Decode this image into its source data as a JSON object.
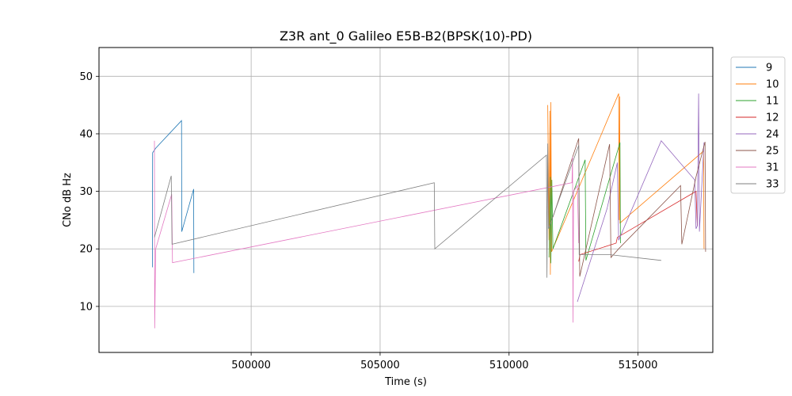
{
  "chart_data": {
    "type": "line",
    "title": "Z3R ant_0 Galileo E5B-B2(BPSK(10)-PD)",
    "xlabel": "Time (s)",
    "ylabel": "CNo dB Hz",
    "xlim": [
      494100,
      517900
    ],
    "ylim": [
      2,
      55
    ],
    "xticks": [
      500000,
      505000,
      510000,
      515000
    ],
    "yticks": [
      10,
      20,
      30,
      40,
      50
    ],
    "grid": true,
    "legend_position": "upper-right-outside",
    "series": [
      {
        "name": "9",
        "color": "#1f77b4",
        "points": [
          [
            496170,
            16.8
          ],
          [
            496180,
            36.7
          ],
          [
            496300,
            37.5
          ],
          [
            497300,
            42.3
          ],
          [
            497310,
            23.0
          ],
          [
            497770,
            30.4
          ],
          [
            497780,
            15.8
          ]
        ]
      },
      {
        "name": "10",
        "color": "#ff7f0e",
        "points": [
          [
            511500,
            45.0
          ],
          [
            511550,
            21.5
          ],
          [
            511580,
            44.0
          ],
          [
            511600,
            15.5
          ],
          [
            511620,
            45.5
          ],
          [
            511650,
            19.5
          ],
          [
            514250,
            47.0
          ],
          [
            514270,
            25.0
          ],
          [
            514290,
            46.5
          ],
          [
            514300,
            24.5
          ],
          [
            517540,
            37.0
          ],
          [
            517560,
            20.0
          ]
        ]
      },
      {
        "name": "11",
        "color": "#2ca02c",
        "points": [
          [
            511550,
            18.5
          ],
          [
            511600,
            32.5
          ],
          [
            511620,
            17.5
          ],
          [
            511660,
            32.0
          ],
          [
            511700,
            20.0
          ],
          [
            512950,
            35.5
          ],
          [
            512980,
            18.0
          ],
          [
            514300,
            38.5
          ],
          [
            514320,
            21.0
          ]
        ]
      },
      {
        "name": "12",
        "color": "#d62728",
        "points": [
          [
            512700,
            17.8
          ],
          [
            512750,
            19.0
          ],
          [
            514150,
            21.0
          ],
          [
            514200,
            22.0
          ],
          [
            517250,
            30.0
          ],
          [
            517300,
            24.0
          ]
        ]
      },
      {
        "name": "24",
        "color": "#9467bd",
        "points": [
          [
            512650,
            10.8
          ],
          [
            513800,
            27.0
          ],
          [
            514200,
            35.0
          ],
          [
            514250,
            21.5
          ],
          [
            515900,
            38.8
          ],
          [
            517200,
            32.0
          ],
          [
            517250,
            23.5
          ],
          [
            517300,
            24.0
          ],
          [
            517350,
            47.0
          ],
          [
            517380,
            23.0
          ],
          [
            517560,
            38.5
          ]
        ]
      },
      {
        "name": "25",
        "color": "#8c564b",
        "points": [
          [
            511700,
            25.5
          ],
          [
            512700,
            39.2
          ],
          [
            512740,
            15.2
          ],
          [
            513900,
            38.2
          ],
          [
            513950,
            18.5
          ],
          [
            514250,
            20.0
          ],
          [
            516650,
            31.0
          ],
          [
            516700,
            20.8
          ],
          [
            517250,
            32.5
          ],
          [
            517600,
            38.6
          ],
          [
            517620,
            19.5
          ]
        ]
      },
      {
        "name": "31",
        "color": "#e377c2",
        "points": [
          [
            496250,
            38.8
          ],
          [
            496260,
            6.2
          ],
          [
            496300,
            20.0
          ],
          [
            496920,
            29.5
          ],
          [
            496950,
            17.6
          ],
          [
            512440,
            31.5
          ],
          [
            512460,
            36.0
          ],
          [
            512480,
            7.2
          ],
          [
            512500,
            30.0
          ],
          [
            512650,
            31.0
          ],
          [
            512700,
            21.0
          ]
        ]
      },
      {
        "name": "33",
        "color": "#7f7f7f",
        "points": [
          [
            496250,
            22.0
          ],
          [
            496900,
            32.7
          ],
          [
            496930,
            20.8
          ],
          [
            507100,
            31.5
          ],
          [
            507120,
            20.0
          ],
          [
            511450,
            36.3
          ],
          [
            511470,
            15.0
          ],
          [
            511500,
            38.3
          ],
          [
            511530,
            23.5
          ],
          [
            512700,
            38.0
          ],
          [
            512720,
            19.0
          ],
          [
            513900,
            19.0
          ],
          [
            515900,
            18.0
          ]
        ]
      }
    ]
  }
}
